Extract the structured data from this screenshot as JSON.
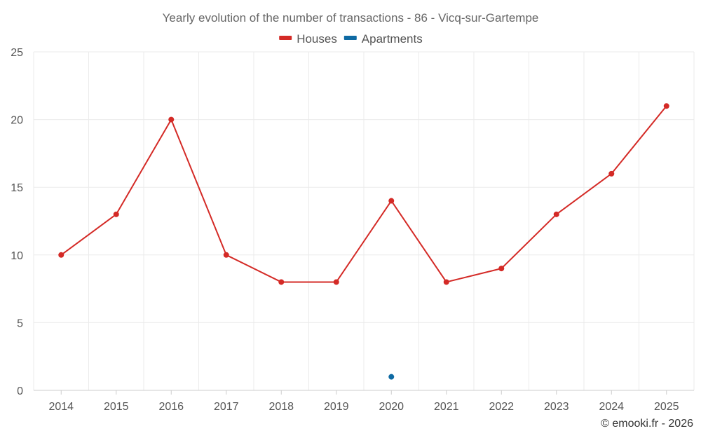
{
  "chart_data": {
    "type": "line",
    "title": "Yearly evolution of the number of transactions - 86 - Vicq-sur-Gartempe",
    "categories": [
      "2014",
      "2015",
      "2016",
      "2017",
      "2018",
      "2019",
      "2020",
      "2021",
      "2022",
      "2023",
      "2024",
      "2025"
    ],
    "series": [
      {
        "name": "Houses",
        "color": "#d42a26",
        "values": [
          10,
          13,
          20,
          10,
          8,
          8,
          14,
          8,
          9,
          13,
          16,
          21
        ]
      },
      {
        "name": "Apartments",
        "color": "#0e6aa3",
        "values": [
          null,
          null,
          null,
          null,
          null,
          null,
          1,
          null,
          null,
          null,
          null,
          null
        ]
      }
    ],
    "ylim": [
      0,
      25
    ],
    "yticks": [
      0,
      5,
      10,
      15,
      20,
      25
    ],
    "xlabel": "",
    "ylabel": "",
    "grid": true,
    "legend_position": "top-center"
  },
  "credit": "© emooki.fr - 2026"
}
